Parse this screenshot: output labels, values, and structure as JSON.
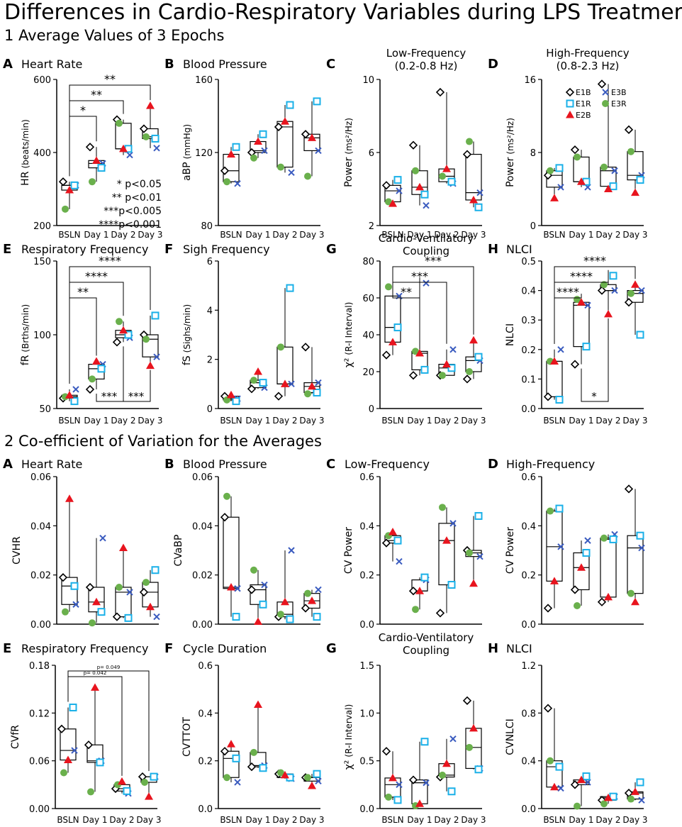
{
  "figure_title": "Differences in Cardio-Respiratory Variables during LPS Treatments",
  "section1_title": "1 Average Values of 3 Epochs",
  "section2_title": "2 Co-efficient of Variation for the Averages",
  "x_categories": [
    "BSLN",
    "Day 1",
    "Day 2",
    "Day 3"
  ],
  "legend": {
    "entries": [
      "E1B",
      "E3B",
      "E1R",
      "E3R",
      "E2B"
    ],
    "colors": {
      "E1B": "#000000",
      "E3B": "#3a5bbf",
      "E1R": "#1ab0e8",
      "E3R": "#6ab04c",
      "E2B": "#e8141e"
    }
  },
  "significance_legend": [
    "* p<0.05",
    "** p<0.01",
    "***p<0.005",
    "****p<0.001"
  ],
  "chart_data": [
    {
      "letter": "A",
      "title": "Heart Rate",
      "title2": "",
      "type": "box",
      "ylabel": "HR",
      "yunit": "(beats/min)",
      "ylim": [
        200,
        600
      ],
      "yticks": [
        "200",
        "400",
        "600"
      ],
      "points": [
        {
          "E1B": 320,
          "E3B": 310,
          "E1R": 310,
          "E3R": 245,
          "E2B": 297
        },
        {
          "E1B": 415,
          "E3B": 370,
          "E1R": 358,
          "E3R": 320,
          "E2B": 378
        },
        {
          "E1B": 490,
          "E3B": 393,
          "E1R": 410,
          "E3R": 480,
          "E2B": 410
        },
        {
          "E1B": 465,
          "E3B": 412,
          "E1R": 438,
          "E3R": 443,
          "E2B": 528
        }
      ],
      "sig": [
        {
          "from": 0,
          "to": 1,
          "label": "*"
        },
        {
          "from": 0,
          "to": 2,
          "label": "**"
        },
        {
          "from": 0,
          "to": 3,
          "label": "**"
        }
      ],
      "sig_legend": true
    },
    {
      "letter": "B",
      "title": "Blood Pressure",
      "title2": "",
      "type": "box",
      "ylabel": "aBP",
      "yunit": "(mmHg)",
      "ylim": [
        80,
        160
      ],
      "yticks": [
        "80",
        "120",
        "160"
      ],
      "points": [
        {
          "E1B": 110,
          "E3B": 103,
          "E1R": 123,
          "E3R": 104,
          "E2B": 119
        },
        {
          "E1B": 120,
          "E3B": 121,
          "E1R": 130,
          "E3R": 117,
          "E2B": 126
        },
        {
          "E1B": 134,
          "E3B": 109,
          "E1R": 146,
          "E3R": 112,
          "E2B": 137
        },
        {
          "E1B": 130,
          "E3B": 121,
          "E1R": 148,
          "E3R": 107,
          "E2B": 128
        }
      ],
      "sig": [],
      "sig_legend": false
    },
    {
      "letter": "C",
      "title": "Low-Frequency",
      "title2": "(0.2-0.8 Hz)",
      "type": "box",
      "ylabel": "Power",
      "yunit": "(ms²/Hz)",
      "ylim": [
        2,
        10
      ],
      "yticks": [
        "2",
        "6",
        "10"
      ],
      "points": [
        {
          "E1B": 4.2,
          "E3B": 3.9,
          "E1R": 4.5,
          "E3R": 3.3,
          "E2B": 3.2
        },
        {
          "E1B": 6.4,
          "E3B": 3.1,
          "E1R": 3.7,
          "E3R": 5.0,
          "E2B": 4.1
        },
        {
          "E1B": 9.3,
          "E3B": 4.3,
          "E1R": 4.4,
          "E3R": 4.7,
          "E2B": 5.1
        },
        {
          "E1B": 5.9,
          "E3B": 3.8,
          "E1R": 3.0,
          "E3R": 6.6,
          "E2B": 3.4
        }
      ],
      "sig": [],
      "sig_legend": false
    },
    {
      "letter": "D",
      "title": "High-Frequency",
      "title2": "(0.8-2.3 Hz)",
      "type": "box",
      "ylabel": "Power",
      "yunit": "(ms²/Hz)",
      "ylim": [
        0,
        16
      ],
      "yticks": [
        "0",
        "8",
        "16"
      ],
      "points": [
        {
          "E1B": 5.5,
          "E3B": 4.2,
          "E1R": 6.3,
          "E3R": 6.0,
          "E2B": 3.0
        },
        {
          "E1B": 8.3,
          "E3B": 4.2,
          "E1R": 4.8,
          "E3R": 7.5,
          "E2B": 4.8
        },
        {
          "E1B": 15.5,
          "E3B": 6.0,
          "E1R": 4.3,
          "E3R": 6.4,
          "E2B": 4.0
        },
        {
          "E1B": 10.5,
          "E3B": 5.5,
          "E1R": 5.0,
          "E3R": 8.1,
          "E2B": 3.6
        }
      ],
      "sig": [],
      "sig_legend": false,
      "legend": true
    },
    {
      "letter": "E",
      "title": "Respiratory Frequency",
      "title2": "",
      "type": "box",
      "ylabel": "fR",
      "yunit": "(Brths/min)",
      "ylim": [
        50,
        150
      ],
      "yticks": [
        "50",
        "100",
        "150"
      ],
      "points": [
        {
          "E1B": 57,
          "E3B": 63,
          "E1R": 55,
          "E3R": 58,
          "E2B": 59
        },
        {
          "E1B": 63,
          "E3B": 80,
          "E1R": 77,
          "E3R": 70,
          "E2B": 82
        },
        {
          "E1B": 95,
          "E3B": 98,
          "E1R": 100,
          "E3R": 109,
          "E2B": 103
        },
        {
          "E1B": 100,
          "E3B": 85,
          "E1R": 113,
          "E3R": 97,
          "E2B": 79
        }
      ],
      "sig": [
        {
          "from": 0,
          "to": 1,
          "label": "**"
        },
        {
          "from": 0,
          "to": 2,
          "label": "****"
        },
        {
          "from": 0,
          "to": 3,
          "label": "****"
        }
      ],
      "sig_below": [
        {
          "from": 1,
          "to": 2,
          "label": "***"
        },
        {
          "from": 1,
          "to": 3,
          "label": "***"
        }
      ],
      "sig_legend": false
    },
    {
      "letter": "F",
      "title": "Sigh Frequency",
      "title2": "",
      "type": "box",
      "ylabel": "fS",
      "yunit": "(Sighs/min)",
      "ylim": [
        0,
        6
      ],
      "yticks": [
        "0",
        "2",
        "4",
        "6"
      ],
      "points": [
        {
          "E1B": 0.5,
          "E3B": 0.4,
          "E1R": 0.3,
          "E3R": 0.35,
          "E2B": 0.55
        },
        {
          "E1B": 0.8,
          "E3B": 0.85,
          "E1R": 1.05,
          "E3R": 1.15,
          "E2B": 1.5
        },
        {
          "E1B": 0.5,
          "E3B": 1.0,
          "E1R": 4.9,
          "E3R": 2.5,
          "E2B": 1.0
        },
        {
          "E1B": 2.5,
          "E3B": 1.05,
          "E1R": 0.65,
          "E3R": 0.6,
          "E2B": 0.9
        }
      ],
      "sig": [],
      "sig_legend": false
    },
    {
      "letter": "G",
      "title": "Cardio-Ventilatory",
      "title2": "Coupling",
      "type": "box",
      "ylabel": "χ²",
      "yunit": "(R-I Interval)",
      "ylim": [
        0,
        80
      ],
      "yticks": [
        "0",
        "20",
        "40",
        "60",
        "80"
      ],
      "points": [
        {
          "E1B": 29,
          "E3B": 61,
          "E1R": 44,
          "E3R": 66,
          "E2B": 36
        },
        {
          "E1B": 18,
          "E3B": 68,
          "E1R": 21,
          "E3R": 31,
          "E2B": 30
        },
        {
          "E1B": 18,
          "E3B": 32,
          "E1R": 22,
          "E3R": 18,
          "E2B": 24
        },
        {
          "E1B": 16,
          "E3B": 26,
          "E1R": 28,
          "E3R": 20,
          "E2B": 37
        }
      ],
      "sig": [
        {
          "from": 0,
          "to": 1,
          "label": "**"
        },
        {
          "from": 0,
          "to": 2,
          "label": "***"
        },
        {
          "from": 0,
          "to": 3,
          "label": "***"
        }
      ],
      "sig_legend": false
    },
    {
      "letter": "H",
      "title": "NLCI",
      "title2": "",
      "type": "box",
      "ylabel": "NLCI",
      "yunit": "",
      "ylim": [
        0.0,
        0.5
      ],
      "yticks": [
        "0.0",
        "0.1",
        "0.2",
        "0.3",
        "0.4",
        "0.5"
      ],
      "points": [
        {
          "E1B": 0.04,
          "E3B": 0.2,
          "E1R": 0.03,
          "E3R": 0.16,
          "E2B": 0.16
        },
        {
          "E1B": 0.15,
          "E3B": 0.35,
          "E1R": 0.21,
          "E3R": 0.37,
          "E2B": 0.36
        },
        {
          "E1B": 0.4,
          "E3B": 0.4,
          "E1R": 0.45,
          "E3R": 0.42,
          "E2B": 0.32
        },
        {
          "E1B": 0.36,
          "E3B": 0.4,
          "E1R": 0.25,
          "E3R": 0.39,
          "E2B": 0.42
        }
      ],
      "sig": [
        {
          "from": 0,
          "to": 1,
          "label": "****"
        },
        {
          "from": 0,
          "to": 2,
          "label": "****"
        },
        {
          "from": 0,
          "to": 3,
          "label": "****"
        }
      ],
      "sig_below": [
        {
          "from": 1,
          "to": 2,
          "label": "*"
        }
      ],
      "sig_legend": false
    },
    {
      "letter": "A",
      "title": "Heart Rate",
      "title2": "",
      "type": "box",
      "ylabel": "CVHR",
      "yunit": "",
      "ylim": [
        0,
        0.06
      ],
      "yticks": [
        "0.00",
        "0.02",
        "0.04",
        "0.06"
      ],
      "points": [
        {
          "E1B": 0.019,
          "E3B": 0.008,
          "E1R": 0.0155,
          "E3R": 0.005,
          "E2B": 0.051
        },
        {
          "E1B": 0.015,
          "E3B": 0.035,
          "E1R": 0.005,
          "E3R": 0.0005,
          "E2B": 0.009
        },
        {
          "E1B": 0.003,
          "E3B": 0.013,
          "E1R": 0.0025,
          "E3R": 0.015,
          "E2B": 0.031
        },
        {
          "E1B": 0.013,
          "E3B": 0.003,
          "E1R": 0.022,
          "E3R": 0.017,
          "E2B": 0.007
        }
      ],
      "sig": [],
      "sig_legend": false
    },
    {
      "letter": "B",
      "title": "Blood Pressure",
      "title2": "",
      "type": "box",
      "ylabel": "CVaBP",
      "yunit": "",
      "ylim": [
        0,
        0.06
      ],
      "yticks": [
        "0.00",
        "0.02",
        "0.04",
        "0.06"
      ],
      "points": [
        {
          "E1B": 0.0435,
          "E3B": 0.0145,
          "E1R": 0.003,
          "E3R": 0.052,
          "E2B": 0.015
        },
        {
          "E1B": 0.014,
          "E3B": 0.016,
          "E1R": 0.008,
          "E3R": 0.022,
          "E2B": 0.001
        },
        {
          "E1B": 0.003,
          "E3B": 0.03,
          "E1R": 0.002,
          "E3R": 0.004,
          "E2B": 0.009
        },
        {
          "E1B": 0.0065,
          "E3B": 0.014,
          "E1R": 0.003,
          "E3R": 0.0125,
          "E2B": 0.0095
        }
      ],
      "sig": [],
      "sig_legend": false
    },
    {
      "letter": "C",
      "title": "Low-Frequency",
      "title2": "",
      "type": "box",
      "ylabel": "CV Power",
      "yunit": "",
      "ylim": [
        0,
        0.6
      ],
      "yticks": [
        "0.0",
        "0.2",
        "0.4",
        "0.6"
      ],
      "points": [
        {
          "E1B": 0.33,
          "E3B": 0.255,
          "E1R": 0.34,
          "E3R": 0.36,
          "E2B": 0.375
        },
        {
          "E1B": 0.135,
          "E3B": 0.18,
          "E1R": 0.19,
          "E3R": 0.06,
          "E2B": 0.135
        },
        {
          "E1B": 0.045,
          "E3B": 0.41,
          "E1R": 0.16,
          "E3R": 0.475,
          "E2B": 0.34
        },
        {
          "E1B": 0.3,
          "E3B": 0.275,
          "E1R": 0.44,
          "E3R": 0.29,
          "E2B": 0.165
        }
      ],
      "sig": [],
      "sig_legend": false
    },
    {
      "letter": "D",
      "title": "High-Frequency",
      "title2": "",
      "type": "box",
      "ylabel": "CV Power",
      "yunit": "",
      "ylim": [
        0,
        0.6
      ],
      "yticks": [
        "0.0",
        "0.2",
        "0.4",
        "0.6"
      ],
      "points": [
        {
          "E1B": 0.065,
          "E3B": 0.315,
          "E1R": 0.47,
          "E3R": 0.46,
          "E2B": 0.175
        },
        {
          "E1B": 0.14,
          "E3B": 0.34,
          "E1R": 0.29,
          "E3R": 0.075,
          "E2B": 0.23
        },
        {
          "E1B": 0.09,
          "E3B": 0.365,
          "E1R": 0.345,
          "E3R": 0.35,
          "E2B": 0.11
        },
        {
          "E1B": 0.55,
          "E3B": 0.31,
          "E1R": 0.36,
          "E3R": 0.125,
          "E2B": 0.09
        }
      ],
      "sig": [],
      "sig_legend": false
    },
    {
      "letter": "E",
      "title": "Respiratory Frequency",
      "title2": "",
      "type": "box",
      "ylabel": "CVfR",
      "yunit": "",
      "ylim": [
        0,
        0.18
      ],
      "yticks": [
        "0.00",
        "0.06",
        "0.12",
        "0.18"
      ],
      "points": [
        {
          "E1B": 0.1,
          "E3B": 0.073,
          "E1R": 0.127,
          "E3R": 0.045,
          "E2B": 0.061
        },
        {
          "E1B": 0.08,
          "E3B": 0.06,
          "E1R": 0.058,
          "E3R": 0.021,
          "E2B": 0.152
        },
        {
          "E1B": 0.025,
          "E3B": 0.019,
          "E1R": 0.022,
          "E3R": 0.03,
          "E2B": 0.034
        },
        {
          "E1B": 0.04,
          "E3B": 0.04,
          "E1R": 0.04,
          "E3R": 0.033,
          "E2B": 0.015
        }
      ],
      "sig": [
        {
          "from": 0,
          "to": 2,
          "label": "p= 0.042"
        },
        {
          "from": 0,
          "to": 3,
          "label": "p= 0.049"
        }
      ],
      "sig_small": true,
      "sig_legend": false
    },
    {
      "letter": "F",
      "title": "Cycle Duration",
      "title2": "",
      "type": "box",
      "ylabel": "CVTTOT",
      "yunit": "",
      "ylim": [
        0,
        0.6
      ],
      "yticks": [
        "0.0",
        "0.2",
        "0.4",
        "0.6"
      ],
      "points": [
        {
          "E1B": 0.24,
          "E3B": 0.11,
          "E1R": 0.21,
          "E3R": 0.13,
          "E2B": 0.27
        },
        {
          "E1B": 0.175,
          "E3B": 0.18,
          "E1R": 0.17,
          "E3R": 0.235,
          "E2B": 0.435
        },
        {
          "E1B": 0.145,
          "E3B": 0.125,
          "E1R": 0.13,
          "E3R": 0.15,
          "E2B": 0.14
        },
        {
          "E1B": 0.13,
          "E3B": 0.115,
          "E1R": 0.145,
          "E3R": 0.13,
          "E2B": 0.095
        }
      ],
      "sig": [],
      "sig_legend": false
    },
    {
      "letter": "G",
      "title": "Cardio-Ventilatory",
      "title2": "Coupling",
      "type": "box",
      "ylabel": "χ²",
      "yunit": "(R-I Interval)",
      "ylim": [
        0,
        1.5
      ],
      "yticks": [
        "0.0",
        "0.5",
        "1.0",
        "1.5"
      ],
      "points": [
        {
          "E1B": 0.6,
          "E3B": 0.25,
          "E1R": 0.09,
          "E3R": 0.12,
          "E2B": 0.32
        },
        {
          "E1B": 0.3,
          "E3B": 0.27,
          "E1R": 0.7,
          "E3R": 0.03,
          "E2B": 0.05
        },
        {
          "E1B": 0.33,
          "E3B": 0.73,
          "E1R": 0.18,
          "E3R": 0.35,
          "E2B": 0.47
        },
        {
          "E1B": 1.13,
          "E3B": 0.42,
          "E1R": 0.41,
          "E3R": 0.64,
          "E2B": 0.84
        }
      ],
      "sig": [],
      "sig_legend": false
    },
    {
      "letter": "H",
      "title": "NLCI",
      "title2": "",
      "type": "box",
      "ylabel": "CVNLCI",
      "yunit": "",
      "ylim": [
        0,
        1.2
      ],
      "yticks": [
        "0.0",
        "0.4",
        "0.8",
        "1.2"
      ],
      "points": [
        {
          "E1B": 0.84,
          "E3B": 0.17,
          "E1R": 0.35,
          "E3R": 0.4,
          "E2B": 0.18
        },
        {
          "E1B": 0.2,
          "E3B": 0.22,
          "E1R": 0.27,
          "E3R": 0.02,
          "E2B": 0.24
        },
        {
          "E1B": 0.07,
          "E3B": 0.1,
          "E1R": 0.1,
          "E3R": 0.04,
          "E2B": 0.09
        },
        {
          "E1B": 0.13,
          "E3B": 0.07,
          "E1R": 0.22,
          "E3R": 0.08,
          "E2B": 0.14
        }
      ],
      "sig": [],
      "sig_legend": false
    }
  ]
}
